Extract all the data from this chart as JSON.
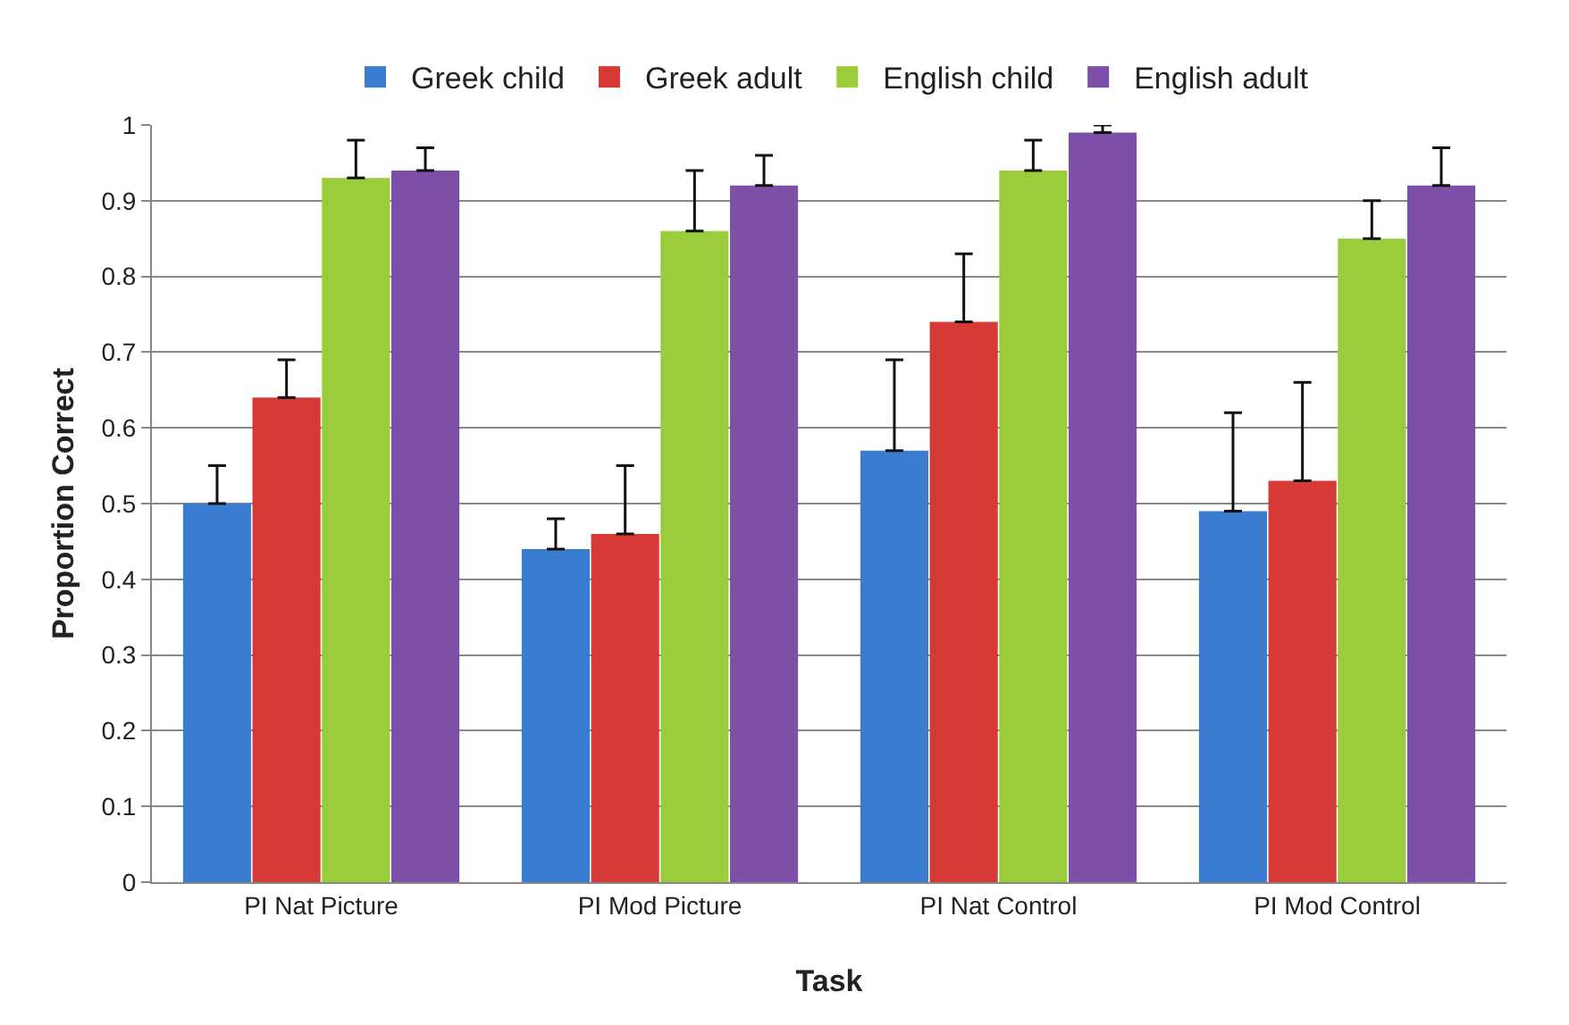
{
  "chart_data": {
    "type": "bar",
    "xlabel": "Task",
    "ylabel": "Proportion Correct",
    "categories": [
      "PI Nat Picture",
      "PI Mod Picture",
      "PI Nat Control",
      "PI Mod Control"
    ],
    "series": [
      {
        "name": "Greek child",
        "color": "#3a7dd0",
        "values": [
          0.5,
          0.44,
          0.57,
          0.49
        ],
        "errors": [
          [
            0.5,
            0.55
          ],
          [
            0.44,
            0.48
          ],
          [
            0.57,
            0.69
          ],
          [
            0.49,
            0.62
          ]
        ]
      },
      {
        "name": "Greek adult",
        "color": "#d63a36",
        "values": [
          0.64,
          0.46,
          0.74,
          0.53
        ],
        "errors": [
          [
            0.64,
            0.69
          ],
          [
            0.46,
            0.55
          ],
          [
            0.74,
            0.83
          ],
          [
            0.53,
            0.66
          ]
        ]
      },
      {
        "name": "English child",
        "color": "#9bcc3c",
        "values": [
          0.93,
          0.86,
          0.94,
          0.85
        ],
        "errors": [
          [
            0.93,
            0.98
          ],
          [
            0.86,
            0.94
          ],
          [
            0.94,
            0.98
          ],
          [
            0.85,
            0.9
          ]
        ]
      },
      {
        "name": "English adult",
        "color": "#7e4fa8",
        "values": [
          0.94,
          0.92,
          0.99,
          0.92
        ],
        "errors": [
          [
            0.94,
            0.97
          ],
          [
            0.92,
            0.96
          ],
          [
            0.99,
            1.0
          ],
          [
            0.92,
            0.97
          ]
        ]
      }
    ],
    "ylim": [
      0,
      1
    ],
    "yticks": [
      0,
      0.1,
      0.2,
      0.3,
      0.4,
      0.5,
      0.6,
      0.7,
      0.8,
      0.9,
      1
    ],
    "grid": "y",
    "legend": "top"
  }
}
